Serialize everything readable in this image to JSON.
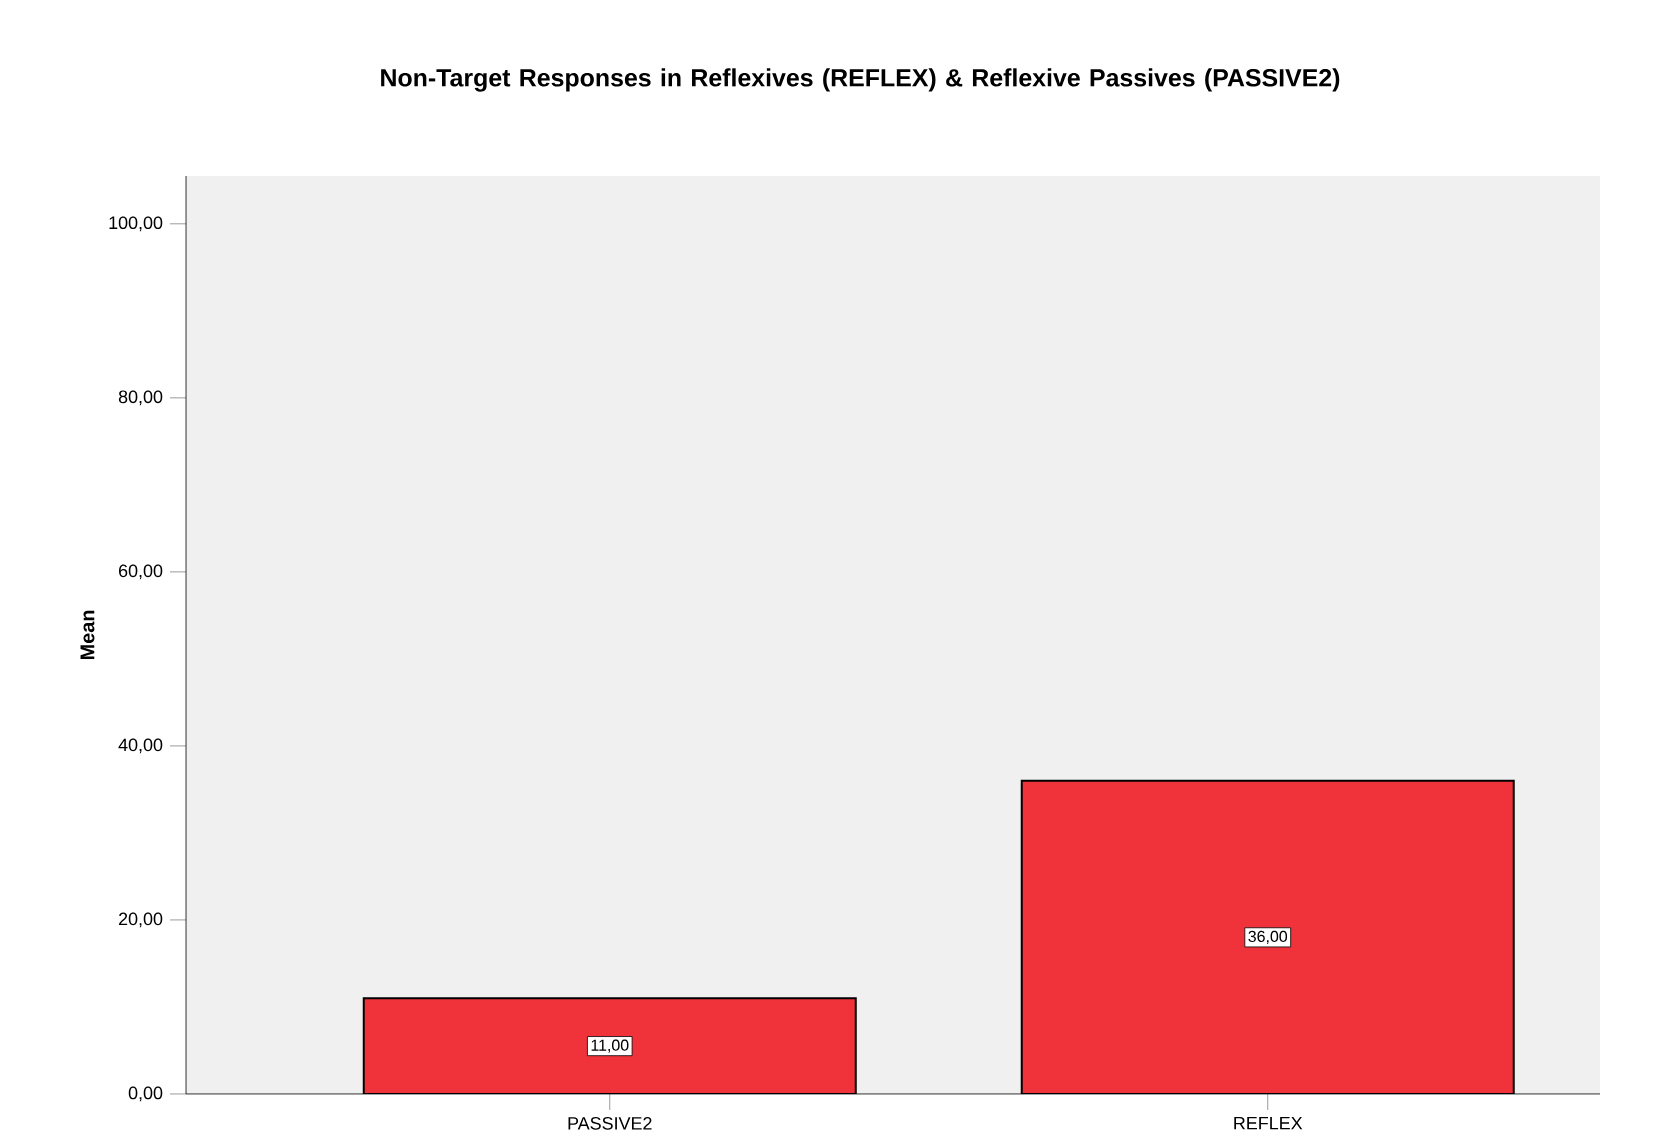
{
  "chart_data": {
    "type": "bar",
    "title": "Non-Target Responses in Reflexives (REFLEX) & Reflexive Passives (PASSIVE2)",
    "ylabel": "Mean",
    "categories": [
      "PASSIVE2",
      "REFLEX"
    ],
    "values": [
      11,
      36
    ],
    "color": "#f0333b",
    "value_labels": [
      "11,00",
      "36,00"
    ],
    "ylim": [
      0,
      105.5
    ],
    "yticks": [
      {
        "value": 0,
        "label": "0,00"
      },
      {
        "value": 20,
        "label": "20,00"
      },
      {
        "value": 40,
        "label": "40,00"
      },
      {
        "value": 60,
        "label": "60,00"
      },
      {
        "value": 80,
        "label": "80,00"
      },
      {
        "value": 100,
        "label": "100,00"
      }
    ],
    "grid": false
  }
}
